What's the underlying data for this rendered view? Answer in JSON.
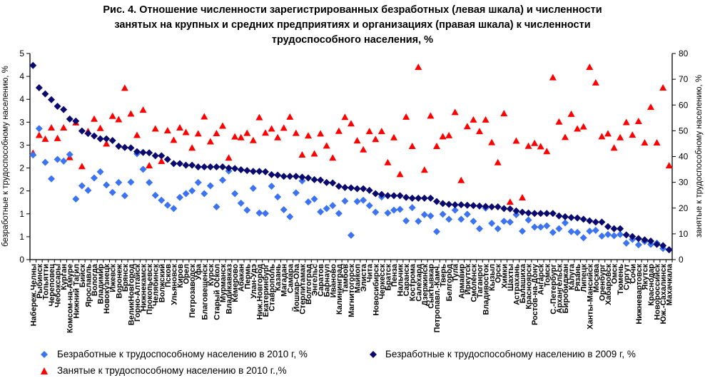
{
  "chart_data": {
    "type": "scatter",
    "title_lines": [
      "Рис. 4. Отношение численности зарегистрированных безработных (левая шкала) и численности",
      "занятых на крупных и средних предприятиях и организациях (правая шкала) к численности",
      "трудоспособного населения, %"
    ],
    "ylabel_left": "безработные к трудоспособному населению, %",
    "ylabel_right": "занятые к трудоспособному населению, %",
    "ylim_left": [
      0,
      5
    ],
    "ylim_right": [
      0,
      80
    ],
    "left_tick_labels": [
      "0",
      "1",
      "1",
      "2",
      "2",
      "3",
      "3",
      "4",
      "4",
      "5"
    ],
    "right_tick_labels": [
      "0",
      "10",
      "20",
      "30",
      "40",
      "50",
      "60",
      "70",
      "80"
    ],
    "grid": false,
    "legend_position": "bottom",
    "categories": [
      "Набереж.Челны",
      "Рыбинск",
      "Тольятти",
      "Череповец",
      "Чебоксары",
      "Курган",
      "Комсом-на-Амуре",
      "Нижний Тагил",
      "Бийск",
      "Ярославль",
      "Вологда",
      "Владимир",
      "Новокузнецк",
      "Ижевск",
      "Воронеж",
      "Брянск",
      "ВеликНовгород",
      "Горно-Алтайск",
      "Нижнекамск",
      "Прокопьевск",
      "Челябинск",
      "Волжский",
      "Псков",
      "Ульяновск",
      "Киров",
      "Орел",
      "Петрозаводск",
      "Уфа",
      "Благовещенск",
      "Курск",
      "Старый Оскол",
      "Мурманск",
      "Владикавказ",
      "Кемерово",
      "Абакан",
      "Пермь",
      "Улан-Удэ",
      "Ниж.Новгород",
      "Екатеринбург",
      "Ставрополь",
      "Казань",
      "Магадан",
      "Самара",
      "Йошкар-Ола",
      "Стерлитамак",
      "Волгоград",
      "Энгельс",
      "Саратов",
      "Барнаул",
      "Иваново",
      "Калининград",
      "Тамбов",
      "Магнитогорск",
      "Майкоп",
      "Элиста",
      "Чита",
      "Новосибирск",
      "Черкесск",
      "Братск",
      "Пенза",
      "Нальчик",
      "Саранск",
      "Кострома",
      "Салехард",
      "Дзержинск",
      "Сыктывкар",
      "Петропавл.-Камч.",
      "Тверь",
      "Белгород",
      "Тула",
      "Армавир",
      "Иркутск",
      "Смоленск",
      "Таганрог",
      "Владивосток",
      "Кызыл",
      "Орск",
      "Химки",
      "Шахты",
      "Астрахань",
      "Балашиха",
      "Красноярск",
      "Ростов-на-Дону",
      "Ангарск",
      "Томск",
      "С.-Петербург",
      "Архангельск",
      "Биробиджан",
      "Калуга",
      "Рязань",
      "Липецк",
      "Ханты-Мансийск",
      "Москва",
      "Оренбург",
      "Хабаровск",
      "Омск",
      "Тюмень",
      "Сургут",
      "Сочи",
      "Нижневартовск",
      "Якутск",
      "Краснодар",
      "Новороссийск",
      "Юж.-Сахалинск",
      "Махачкала"
    ],
    "series": [
      {
        "name": "Безработные к трудоспособному населению в 2010 г, %",
        "axis": "left",
        "marker": "diamond",
        "color": "#3B73F0",
        "values": [
          2.54,
          3.18,
          2.36,
          1.96,
          2.43,
          2.39,
          2.55,
          1.47,
          1.79,
          1.68,
          1.98,
          2.13,
          1.81,
          1.63,
          1.87,
          1.55,
          1.88,
          2.57,
          2.19,
          1.87,
          1.56,
          1.44,
          1.32,
          1.24,
          1.51,
          1.6,
          1.67,
          1.87,
          1.6,
          1.79,
          1.28,
          1.93,
          2.15,
          1.6,
          1.37,
          1.2,
          1.73,
          1.13,
          1.12,
          1.78,
          1.52,
          1.21,
          1.04,
          1.62,
          1.91,
          1.4,
          1.47,
          1.16,
          1.24,
          1.31,
          1.12,
          1.42,
          0.59,
          1.41,
          1.44,
          1.31,
          1.15,
          1.52,
          1.13,
          1.2,
          1.22,
          0.94,
          1.26,
          0.93,
          1.09,
          1.06,
          0.68,
          1.1,
          0.98,
          1.2,
          0.98,
          1.1,
          0.93,
          0.75,
          1.25,
          0.88,
          0.75,
          0.93,
          0.91,
          1.09,
          0.69,
          0.96,
          0.79,
          0.79,
          0.82,
          0.66,
          0.75,
          0.89,
          0.68,
          0.66,
          0.53,
          0.69,
          0.71,
          0.57,
          0.61,
          0.58,
          0.61,
          0.4,
          0.49,
          0.36,
          0.44,
          0.37,
          0.4,
          0.27,
          0.24
        ]
      },
      {
        "name": "Безработные к трудоспособному населению в 2009 г, %",
        "axis": "left",
        "marker": "diamond",
        "color": "#0A0A6E",
        "values": [
          4.71,
          4.17,
          4.02,
          3.88,
          3.72,
          3.64,
          3.41,
          3.36,
          3.12,
          3.06,
          3.0,
          2.93,
          2.93,
          2.89,
          2.75,
          2.72,
          2.71,
          2.62,
          2.6,
          2.59,
          2.52,
          2.52,
          2.43,
          2.33,
          2.33,
          2.29,
          2.29,
          2.25,
          2.25,
          2.25,
          2.25,
          2.25,
          2.22,
          2.21,
          2.18,
          2.16,
          2.14,
          2.14,
          2.13,
          2.06,
          2.05,
          2.02,
          2.02,
          2.02,
          2.0,
          1.98,
          1.94,
          1.93,
          1.87,
          1.86,
          1.78,
          1.75,
          1.74,
          1.72,
          1.72,
          1.68,
          1.6,
          1.58,
          1.55,
          1.55,
          1.55,
          1.51,
          1.49,
          1.49,
          1.49,
          1.49,
          1.41,
          1.36,
          1.34,
          1.33,
          1.33,
          1.32,
          1.31,
          1.3,
          1.29,
          1.28,
          1.28,
          1.24,
          1.23,
          1.18,
          1.15,
          1.13,
          1.12,
          1.12,
          1.12,
          1.12,
          1.06,
          1.04,
          1.02,
          1.01,
          0.98,
          0.94,
          0.91,
          0.91,
          0.8,
          0.75,
          0.75,
          0.6,
          0.56,
          0.51,
          0.48,
          0.45,
          0.37,
          0.34,
          0.24
        ]
      },
      {
        "name": "Занятые к трудоспособному населению в 2010 г.,%",
        "axis": "right",
        "marker": "triangle",
        "color": "#FF0000",
        "values": [
          41.4,
          48.3,
          46.8,
          51.2,
          47.1,
          51.2,
          39.7,
          53.2,
          36.2,
          49.8,
          54.6,
          51.0,
          45.0,
          55.7,
          54.4,
          66.6,
          56.6,
          48.3,
          58.1,
          36.5,
          50.8,
          38.2,
          50.1,
          46.4,
          51.2,
          49.4,
          43.4,
          48.9,
          55.5,
          45.8,
          49.0,
          51.9,
          39.5,
          47.7,
          47.4,
          49.1,
          46.3,
          55.2,
          49.2,
          50.8,
          47.4,
          51.1,
          55.4,
          49.1,
          40.7,
          48.1,
          41.1,
          48.9,
          44.2,
          39.5,
          49.9,
          55.3,
          52.8,
          46.2,
          42.7,
          49.8,
          46.7,
          49.8,
          37.7,
          47.4,
          33.1,
          55.4,
          44.0,
          74.7,
          34.8,
          55.8,
          44.0,
          47.8,
          48.2,
          57.2,
          30.8,
          51.7,
          54.3,
          49.8,
          54.3,
          45.5,
          37.7,
          56.7,
          22.4,
          46.1,
          24.1,
          44.1,
          45.2,
          43.9,
          42.0,
          70.7,
          53.5,
          47.5,
          56.5,
          50.8,
          51.6,
          74.7,
          68.7,
          47.8,
          48.9,
          43.4,
          47.4,
          53.3,
          48.4,
          53.7,
          45.4,
          59.2,
          45.4,
          66.7,
          36.5
        ]
      }
    ]
  }
}
